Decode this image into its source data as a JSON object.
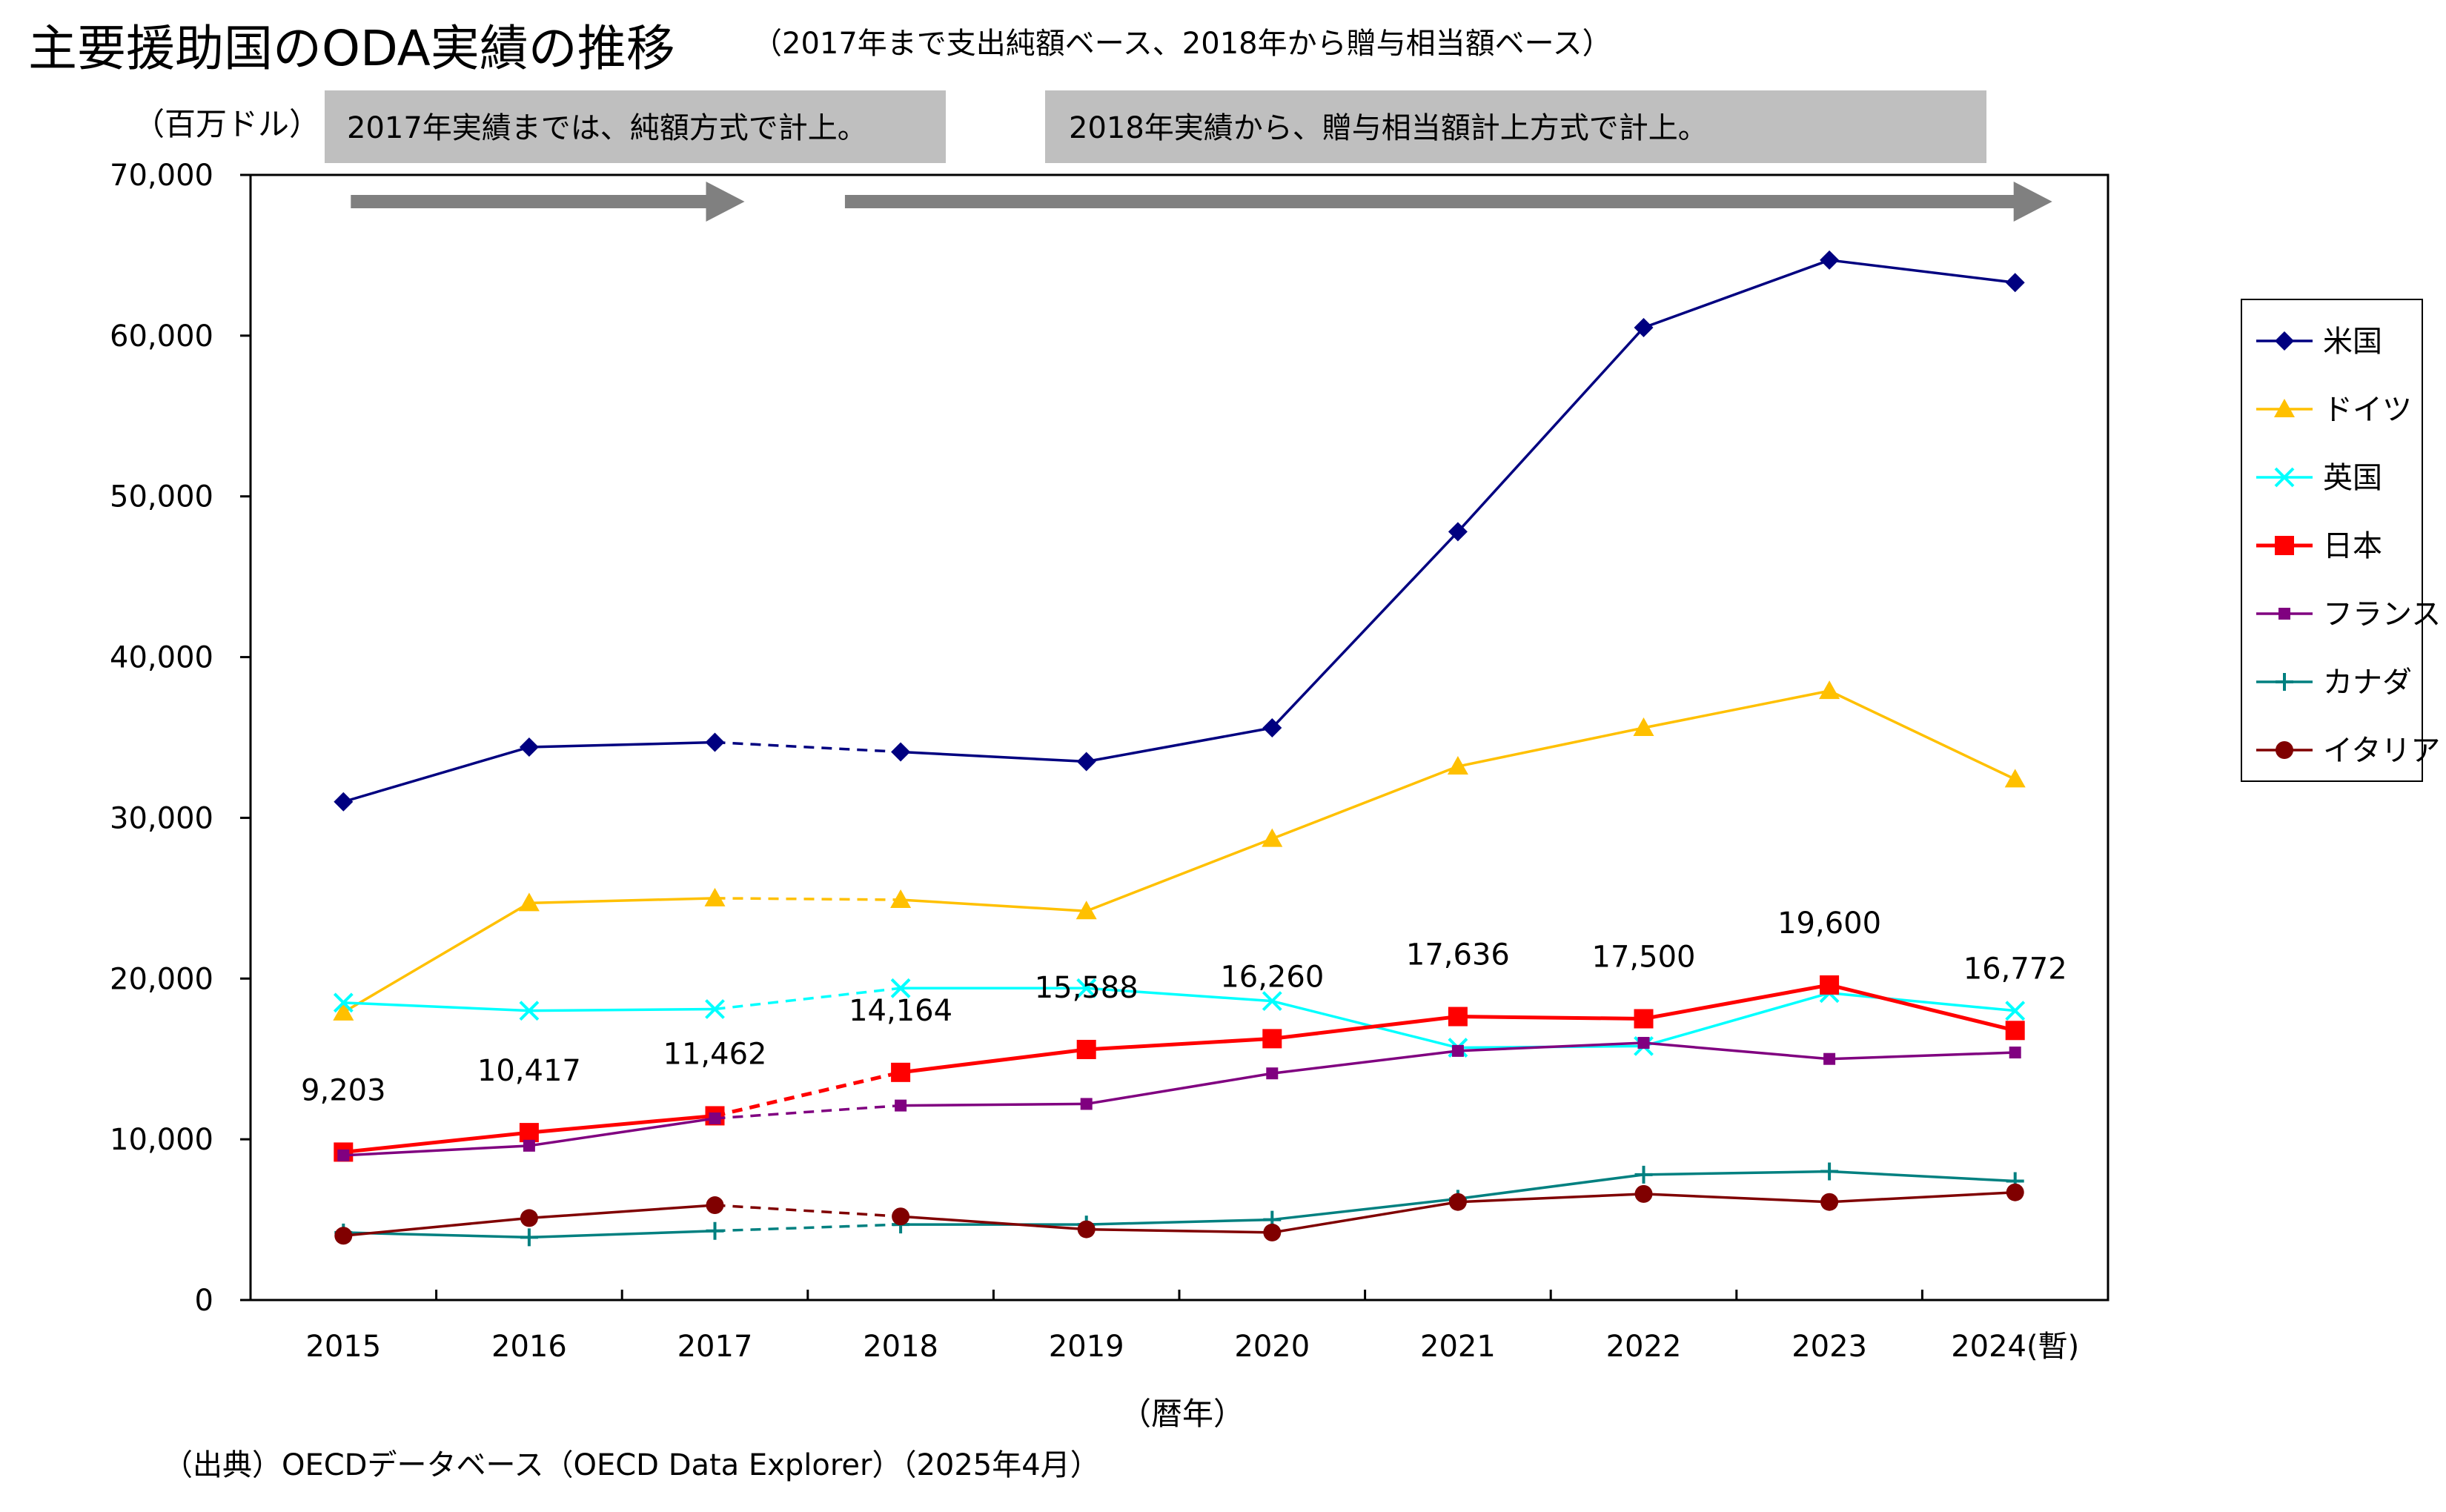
{
  "chart_data": {
    "type": "line",
    "title": "主要援助国のODA実績の推移",
    "subtitle": "（2017年まで支出純額ベース、2018年から贈与相当額ベース）",
    "unit_label": "（百万ドル）",
    "xlabel": "（暦年）",
    "ylabel": "",
    "source": "（出典）OECDデータベース（OECD Data Explorer）（2025年4月）",
    "annotations": [
      {
        "name": "net-basis-note",
        "text": "2017年実績までは、純額方式で計上。"
      },
      {
        "name": "grant-basis-note",
        "text": "2018年実績から、贈与相当額計上方式で計上。"
      }
    ],
    "categories": [
      "2015",
      "2016",
      "2017",
      "2018",
      "2019",
      "2020",
      "2021",
      "2022",
      "2023",
      "2024(暫)"
    ],
    "y_ticks": [
      "0",
      "10,000",
      "20,000",
      "30,000",
      "40,000",
      "50,000",
      "60,000",
      "70,000"
    ],
    "ylim": [
      0,
      70000
    ],
    "basis_break_between": [
      "2017",
      "2018"
    ],
    "grid": false,
    "legend_position": "right",
    "series": [
      {
        "name": "米国",
        "color": "#000080",
        "marker": "diamond",
        "values": [
          31000,
          34400,
          34700,
          34100,
          33500,
          35600,
          47800,
          60500,
          64700,
          63300
        ]
      },
      {
        "name": "ドイツ",
        "color": "#FFC000",
        "marker": "triangle",
        "values": [
          17900,
          24700,
          25000,
          24900,
          24200,
          28700,
          33200,
          35600,
          37900,
          32400
        ]
      },
      {
        "name": "英国",
        "color": "#00FFFF",
        "marker": "x",
        "values": [
          18500,
          18000,
          18100,
          19400,
          19400,
          18600,
          15700,
          15800,
          19100,
          18000
        ]
      },
      {
        "name": "日本",
        "color": "#FF0000",
        "marker": "square",
        "values": [
          9203,
          10417,
          11462,
          14164,
          15588,
          16260,
          17636,
          17500,
          19600,
          16772
        ],
        "data_labels": [
          "9,203",
          "10,417",
          "11,462",
          "14,164",
          "15,588",
          "16,260",
          "17,636",
          "17,500",
          "19,600",
          "16,772"
        ]
      },
      {
        "name": "フランス",
        "color": "#800080",
        "marker": "small-square",
        "values": [
          9000,
          9600,
          11300,
          12100,
          12200,
          14100,
          15500,
          16000,
          15000,
          15400
        ]
      },
      {
        "name": "カナダ",
        "color": "#008080",
        "marker": "plus",
        "values": [
          4200,
          3900,
          4300,
          4700,
          4700,
          5000,
          6300,
          7800,
          8000,
          7400
        ]
      },
      {
        "name": "イタリア",
        "color": "#800000",
        "marker": "circle",
        "values": [
          4000,
          5100,
          5900,
          5200,
          4400,
          4200,
          6100,
          6600,
          6100,
          6700
        ]
      }
    ]
  }
}
